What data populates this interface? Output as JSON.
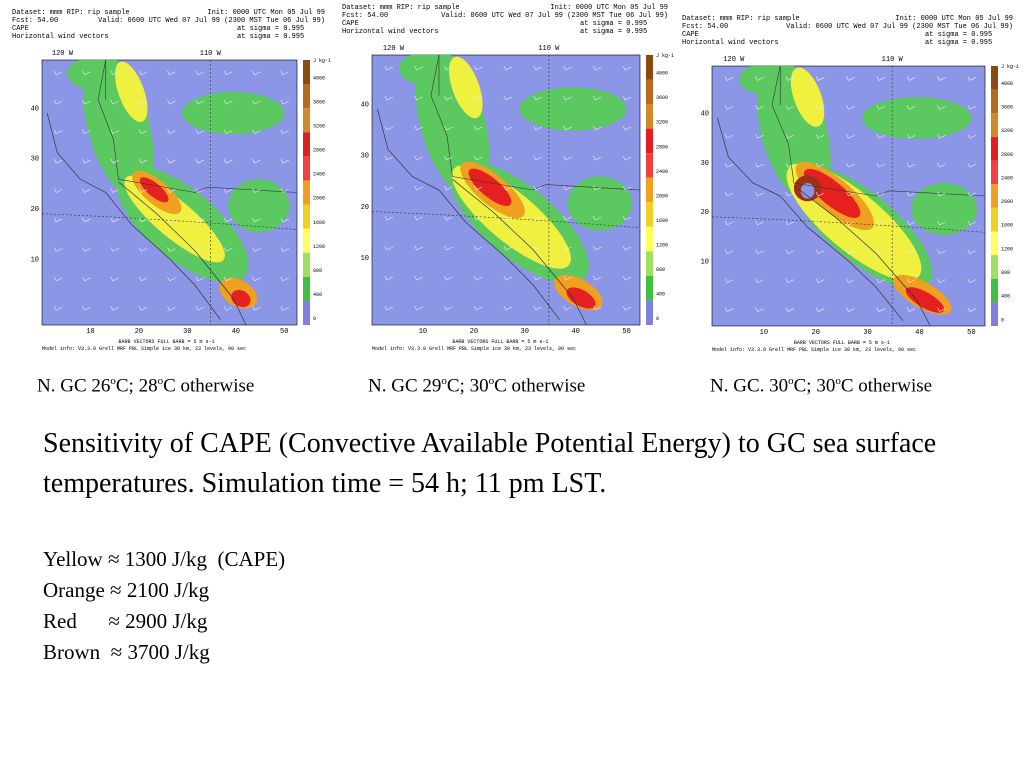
{
  "panels": [
    {
      "header": {
        "dataset": "Dataset: mmm  RIP: rip sample",
        "init": "Init: 0000 UTC Mon 05 Jul 99",
        "fcst": "Fcst:    54.00",
        "valid": "Valid: 0600 UTC Wed 07 Jul 99 (2300 MST Tue 06 Jul 99)",
        "field": "CAPE",
        "field_level": "at sigma = 0.995",
        "vectors": "Horizontal wind vectors",
        "vectors_level": "at sigma = 0.995"
      },
      "lon_labels": [
        "120 W",
        "110 W"
      ],
      "lat_labels": [
        "40",
        "30",
        "20",
        "10"
      ],
      "x_labels": [
        "10",
        "20",
        "30",
        "40",
        "50"
      ],
      "colorbar_unit": "J kg-1",
      "colorbar_labels": [
        "4000",
        "3600",
        "3200",
        "2800",
        "2400",
        "2000",
        "1600",
        "1200",
        "800",
        "400",
        "0"
      ],
      "barb_note": "BARB VECTORS  FULL BARB = 5 m s-1",
      "model_info": "Model info: V3.3.0   Grell   MRF PBL   Simple ice   30 km, 23 levels,   90 sec",
      "caption": [
        "N. GC 26",
        "o",
        "C; 28",
        "o",
        "C otherwise"
      ]
    },
    {
      "header": {
        "dataset": "Dataset: mmm  RIP: rip sample",
        "init": "Init: 0000 UTC Mon 05 Jul 99",
        "fcst": "Fcst:    54.00",
        "valid": "Valid: 0600 UTC Wed 07 Jul 99 (2300 MST Tue 06 Jul 99)",
        "field": "CAPE",
        "field_level": "at sigma = 0.995",
        "vectors": "Horizontal wind vectors",
        "vectors_level": "at sigma = 0.995"
      },
      "lon_labels": [
        "120 W",
        "110 W"
      ],
      "lat_labels": [
        "40",
        "30",
        "20",
        "10"
      ],
      "x_labels": [
        "10",
        "20",
        "30",
        "40",
        "50"
      ],
      "colorbar_unit": "J kg-1",
      "colorbar_labels": [
        "4000",
        "3600",
        "3200",
        "2800",
        "2400",
        "2000",
        "1600",
        "1200",
        "800",
        "400",
        "0"
      ],
      "barb_note": "BARB VECTORS  FULL BARB = 5 m s-1",
      "model_info": "Model info: V3.3.0   Grell   MRF PBL   Simple ice   30 km, 23 levels,   90 sec",
      "caption": [
        "N. GC 29",
        "o",
        "C; 30",
        "o",
        "C otherwise"
      ]
    },
    {
      "header": {
        "dataset": "Dataset: mmm  RIP: rip sample",
        "init": "Init: 0000 UTC Mon 05 Jul 99",
        "fcst": "Fcst:    54.00",
        "valid": "Valid: 0600 UTC Wed 07 Jul 99 (2300 MST Tue 06 Jul 99)",
        "field": "CAPE",
        "field_level": "at sigma = 0.995",
        "vectors": "Horizontal wind vectors",
        "vectors_level": "at sigma = 0.995"
      },
      "lon_labels": [
        "120 W",
        "110 W"
      ],
      "lat_labels": [
        "40",
        "30",
        "20",
        "10"
      ],
      "x_labels": [
        "10",
        "20",
        "30",
        "40",
        "50"
      ],
      "colorbar_unit": "J kg-1",
      "colorbar_labels": [
        "4000",
        "3600",
        "3200",
        "2800",
        "2400",
        "2000",
        "1600",
        "1200",
        "800",
        "400",
        "0"
      ],
      "barb_note": "BARB VECTORS  FULL BARB = 5 m s-1",
      "model_info": "Model info: V3.3.0   Grell   MRF PBL   Simple ice   30 km, 23 levels,   90 sec",
      "caption": [
        "N. GC. 30",
        "o",
        "C; 30",
        "o",
        "C otherwise"
      ]
    }
  ],
  "body": {
    "paragraph": "Sensitivity of CAPE (Convective Available Potential Energy) to GC sea surface temperatures.  Simulation time = 54 h; 11 pm LST.",
    "legend": [
      "Yellow ≈ 1300 J/kg  (CAPE)",
      "Orange ≈ 2100 J/kg",
      "Red      ≈ 2900 J/kg",
      "Brown  ≈ 3700 J/kg"
    ]
  }
}
